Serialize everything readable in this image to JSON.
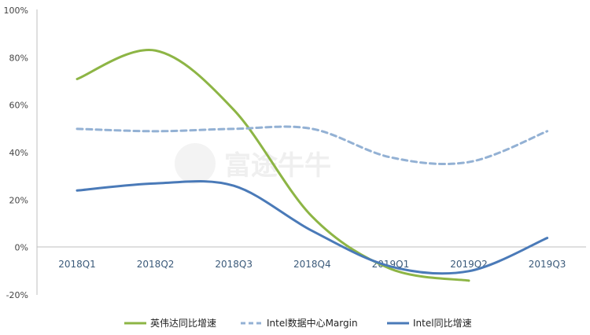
{
  "watermark": {
    "text": "富途牛牛"
  },
  "chart_data": {
    "type": "line",
    "title": "",
    "xlabel": "",
    "ylabel": "",
    "categories": [
      "2018Q1",
      "2018Q2",
      "2018Q3",
      "2018Q4",
      "2019Q1",
      "2019Q2",
      "2019Q3"
    ],
    "y_ticks": [
      "100%",
      "80%",
      "60%",
      "40%",
      "20%",
      "0%",
      "-20%"
    ],
    "y_tick_values": [
      100,
      80,
      60,
      40,
      20,
      0,
      -20
    ],
    "ylim": [
      -20,
      100
    ],
    "grid": false,
    "legend_position": "bottom",
    "series": [
      {
        "name": "英伟达同比增速",
        "color": "#8db545",
        "dash": "solid",
        "values": [
          71,
          83,
          58,
          13,
          -9,
          -14,
          null
        ]
      },
      {
        "name": "Intel数据中心Margin",
        "color": "#93b1d4",
        "dash": "dashed",
        "values": [
          50,
          49,
          50,
          50,
          38,
          36,
          49
        ]
      },
      {
        "name": "Intel同比增速",
        "color": "#4a7ab8",
        "dash": "solid",
        "values": [
          24,
          27,
          26,
          7,
          -8,
          -10,
          4
        ]
      }
    ]
  }
}
